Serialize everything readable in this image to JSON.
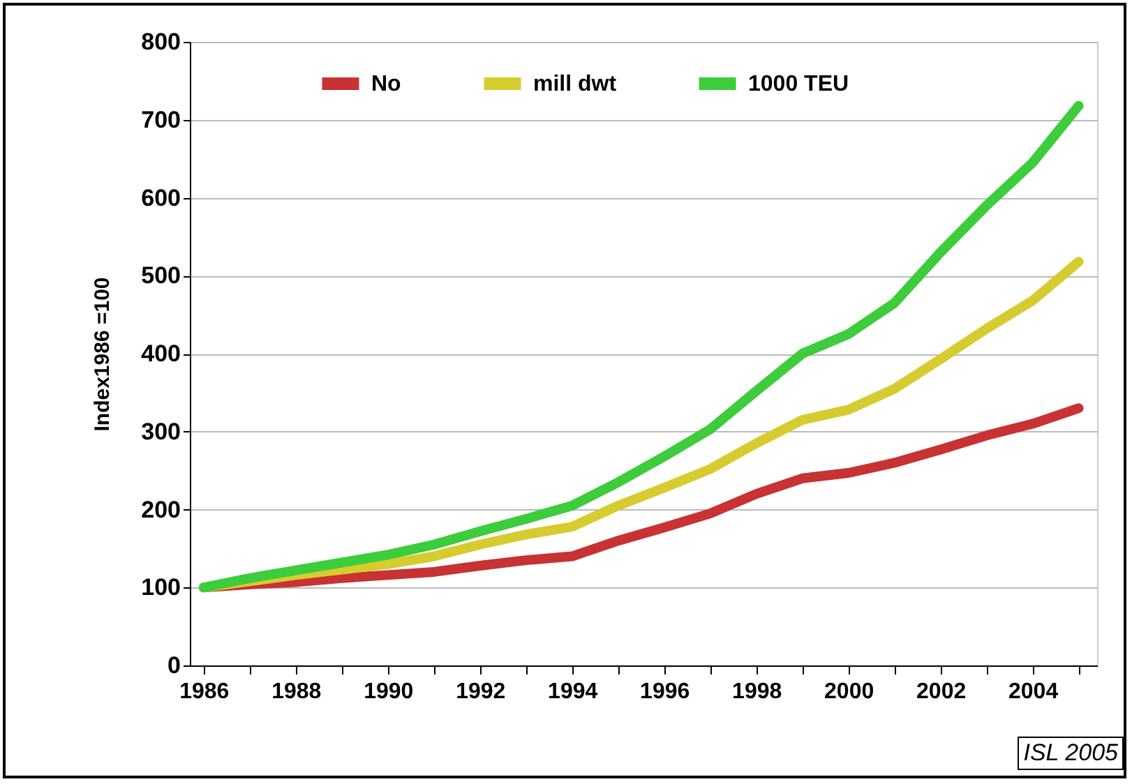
{
  "chart_data": {
    "type": "line",
    "ylabel": "Index1986 =100",
    "x": [
      1986,
      1987,
      1988,
      1989,
      1990,
      1991,
      1992,
      1993,
      1994,
      1995,
      1996,
      1997,
      1998,
      1999,
      2000,
      2001,
      2002,
      2003,
      2004,
      2005
    ],
    "series": [
      {
        "name": "No",
        "color": "#c83232",
        "values": [
          100,
          104,
          107,
          112,
          116,
          120,
          128,
          135,
          140,
          160,
          177,
          195,
          220,
          240,
          247,
          260,
          277,
          295,
          310,
          330
        ]
      },
      {
        "name": "mill dwt",
        "color": "#d6cc30",
        "values": [
          100,
          108,
          116,
          123,
          130,
          140,
          155,
          168,
          178,
          205,
          228,
          252,
          285,
          315,
          328,
          355,
          393,
          432,
          468,
          518
        ]
      },
      {
        "name": "1000 TEU",
        "color": "#3ccc3c",
        "values": [
          100,
          112,
          122,
          132,
          142,
          155,
          172,
          188,
          205,
          235,
          268,
          303,
          352,
          400,
          425,
          465,
          530,
          590,
          645,
          718
        ]
      }
    ],
    "xlim": [
      1985.7,
      2005.4
    ],
    "xticks": [
      1986,
      {
        "value": 1987,
        "label": null
      },
      1988,
      {
        "value": 1989,
        "label": null
      },
      1990,
      {
        "value": 1991,
        "label": null
      },
      1992,
      {
        "value": 1993,
        "label": null
      },
      1994,
      {
        "value": 1995,
        "label": null
      },
      1996,
      {
        "value": 1997,
        "label": null
      },
      1998,
      {
        "value": 1999,
        "label": null
      },
      2000,
      {
        "value": 2001,
        "label": null
      },
      2002,
      {
        "value": 2003,
        "label": null
      },
      2004,
      {
        "value": 2005,
        "label": null
      }
    ],
    "ylim": [
      0,
      800
    ],
    "yticks": [
      0,
      100,
      200,
      300,
      400,
      500,
      600,
      700,
      800
    ],
    "grid": "y",
    "legend": "top",
    "marker": "none",
    "line_style": "solid",
    "annotations": [
      "ISL 2005"
    ]
  }
}
